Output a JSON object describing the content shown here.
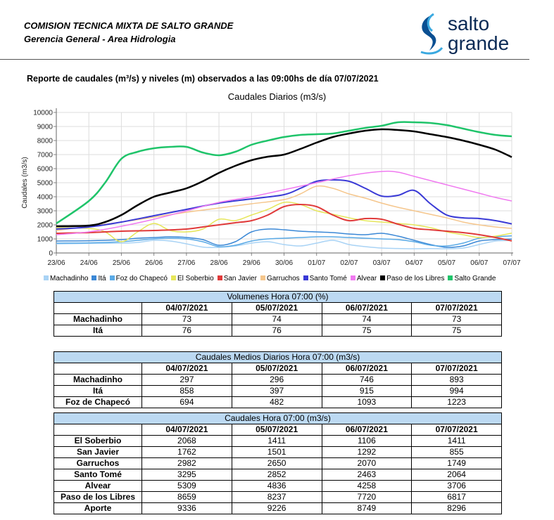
{
  "header": {
    "org": "COMISION TECNICA MIXTA DE SALTO GRANDE",
    "dept": "Gerencia General - Area Hidrologia",
    "logo_line1": "salto",
    "logo_line2": "grande",
    "report_title": "Reporte de caudales (m³/s) y niveles (m) observados a las 09:00hs de día 07/07/2021"
  },
  "chart_data": {
    "type": "line",
    "title": "Caudales Diarios (m3/s)",
    "ylabel": "Caudales (m3/s)",
    "xlabel": "",
    "ylim": [
      0,
      10000
    ],
    "yticks": [
      0,
      1000,
      2000,
      3000,
      4000,
      5000,
      6000,
      7000,
      8000,
      9000,
      10000
    ],
    "xlim": [
      0,
      14
    ],
    "x_tick_labels": [
      "23/06",
      "24/06",
      "25/06",
      "26/06",
      "27/06",
      "28/06",
      "29/06",
      "30/06",
      "01/07",
      "02/07",
      "03/07",
      "04/07",
      "05/07",
      "06/07",
      "07/07"
    ],
    "grid": true,
    "legend": "bottom",
    "series": [
      {
        "name": "Machadinho",
        "color": "#a9d3f5",
        "width": 1.5,
        "x": [
          0,
          1,
          2,
          2.5,
          3,
          3.5,
          4,
          4.5,
          5,
          5.5,
          6,
          6.5,
          7,
          7.5,
          8,
          8.5,
          9,
          9.5,
          10,
          10.5,
          11,
          11.5,
          12,
          12.5,
          13,
          13.5,
          14
        ],
        "y": [
          650,
          680,
          700,
          750,
          900,
          850,
          650,
          420,
          400,
          500,
          700,
          800,
          600,
          500,
          700,
          900,
          600,
          450,
          350,
          320,
          300,
          310,
          300,
          350,
          600,
          850,
          890
        ]
      },
      {
        "name": "Itá",
        "color": "#3b88d6",
        "width": 1.5,
        "x": [
          0,
          1,
          2,
          2.5,
          3,
          3.5,
          4,
          4.5,
          5,
          5.5,
          6,
          6.5,
          7,
          7.5,
          8,
          8.5,
          9,
          9.5,
          10,
          10.5,
          11,
          11.5,
          12,
          12.5,
          13,
          13.5,
          14
        ],
        "y": [
          850,
          870,
          950,
          1050,
          1100,
          1150,
          1100,
          950,
          550,
          800,
          1500,
          1700,
          1650,
          1550,
          1500,
          1450,
          1350,
          1300,
          1400,
          1200,
          900,
          600,
          400,
          500,
          850,
          950,
          990
        ]
      },
      {
        "name": "Foz do Chapecó",
        "color": "#5aaae6",
        "width": 1.5,
        "x": [
          0,
          1,
          2,
          2.5,
          3,
          3.5,
          4,
          4.5,
          5,
          5.5,
          6,
          6.5,
          7,
          7.5,
          8,
          8.5,
          9,
          9.5,
          10,
          10.5,
          11,
          11.5,
          12,
          12.5,
          13,
          13.5,
          14
        ],
        "y": [
          700,
          720,
          800,
          900,
          1000,
          1050,
          1000,
          800,
          450,
          550,
          850,
          1000,
          1050,
          1100,
          1150,
          1150,
          1100,
          1050,
          1000,
          950,
          800,
          550,
          500,
          700,
          1050,
          1150,
          1220
        ]
      },
      {
        "name": "El Soberbio",
        "color": "#e6e65a",
        "width": 1.5,
        "x": [
          0,
          1,
          1.5,
          2,
          2.5,
          3,
          3.5,
          4,
          4.5,
          5,
          5.5,
          6,
          6.5,
          7,
          7.5,
          8,
          8.5,
          9,
          9.5,
          10,
          10.5,
          11,
          11.5,
          12,
          12.5,
          13,
          13.5,
          14
        ],
        "y": [
          1800,
          1750,
          1500,
          800,
          1500,
          2100,
          1600,
          1500,
          1700,
          2400,
          2300,
          2700,
          3100,
          3600,
          3450,
          3000,
          2750,
          2500,
          2300,
          2200,
          2100,
          2000,
          1800,
          1500,
          1300,
          1100,
          1200,
          1410
        ]
      },
      {
        "name": "San Javier",
        "color": "#e03a3a",
        "width": 2,
        "x": [
          0,
          1,
          2,
          3,
          4,
          4.5,
          5,
          5.5,
          6,
          6.5,
          7,
          7.5,
          8,
          8.5,
          9,
          9.5,
          10,
          10.5,
          11,
          11.5,
          12,
          12.5,
          13,
          13.5,
          14
        ],
        "y": [
          1400,
          1450,
          1550,
          1600,
          1700,
          1850,
          2000,
          2150,
          2300,
          2700,
          3300,
          3450,
          3300,
          2700,
          2300,
          2450,
          2400,
          2050,
          1750,
          1650,
          1550,
          1450,
          1300,
          1100,
          860
        ]
      },
      {
        "name": "Garruchos",
        "color": "#f5c68c",
        "width": 1.5,
        "x": [
          0,
          1,
          2,
          3,
          4,
          5,
          6,
          7,
          7.5,
          8,
          8.5,
          9,
          9.5,
          10,
          10.5,
          11,
          11.5,
          12,
          12.5,
          13,
          13.5,
          14
        ],
        "y": [
          1600,
          1900,
          2200,
          2550,
          2900,
          3200,
          3500,
          3800,
          4200,
          4750,
          4600,
          4200,
          3900,
          3550,
          3250,
          3000,
          2750,
          2500,
          2200,
          2000,
          1850,
          1750
        ]
      },
      {
        "name": "Santo Tomé",
        "color": "#3a3ad6",
        "width": 2,
        "x": [
          0,
          1,
          2,
          3,
          4,
          5,
          6,
          7,
          7.5,
          8,
          8.5,
          9,
          9.5,
          10,
          10.5,
          11,
          11.5,
          12,
          12.5,
          13,
          13.5,
          14
        ],
        "y": [
          1700,
          1850,
          2200,
          2650,
          3100,
          3550,
          3850,
          4150,
          4600,
          5100,
          5200,
          5100,
          4600,
          4050,
          4100,
          4450,
          3500,
          2700,
          2500,
          2450,
          2300,
          2070
        ]
      },
      {
        "name": "Alvear",
        "color": "#f07af0",
        "width": 1.5,
        "x": [
          0,
          1,
          2,
          3,
          4,
          5,
          6,
          7,
          8,
          9,
          10,
          10.5,
          11,
          11.5,
          12,
          12.5,
          13,
          13.5,
          14
        ],
        "y": [
          1300,
          1500,
          1900,
          2400,
          3000,
          3600,
          4000,
          4500,
          5000,
          5500,
          5800,
          5750,
          5450,
          5150,
          4850,
          4550,
          4250,
          3950,
          3700
        ]
      },
      {
        "name": "Paso de los Libres",
        "color": "#000000",
        "width": 2.5,
        "x": [
          0,
          1,
          1.5,
          2,
          2.5,
          3,
          3.5,
          4,
          4.5,
          5,
          5.5,
          6,
          6.5,
          7,
          7.5,
          8,
          8.5,
          9,
          9.5,
          10,
          10.5,
          11,
          11.5,
          12,
          12.5,
          13,
          13.5,
          14
        ],
        "y": [
          1900,
          1950,
          2200,
          2700,
          3400,
          4000,
          4300,
          4600,
          5100,
          5700,
          6200,
          6600,
          6850,
          7000,
          7400,
          7850,
          8250,
          8500,
          8700,
          8800,
          8750,
          8650,
          8450,
          8250,
          8000,
          7700,
          7350,
          6820
        ]
      },
      {
        "name": "Salto Grande",
        "color": "#1fc46a",
        "width": 2.5,
        "x": [
          0,
          1,
          1.5,
          2,
          2.5,
          3,
          3.5,
          4,
          4.5,
          5,
          5.5,
          6,
          6.5,
          7,
          7.5,
          8,
          8.5,
          9,
          9.5,
          10,
          10.5,
          11,
          11.5,
          12,
          12.5,
          13,
          13.5,
          14
        ],
        "y": [
          2100,
          3700,
          5000,
          6700,
          7200,
          7450,
          7550,
          7550,
          7150,
          6950,
          7200,
          7700,
          8000,
          8250,
          8400,
          8450,
          8500,
          8700,
          8900,
          9050,
          9300,
          9300,
          9250,
          9100,
          8850,
          8600,
          8400,
          8300
        ]
      }
    ]
  },
  "tables": [
    {
      "caption": "Volumenes Hora 07:00 (%)",
      "dates": [
        "04/07/2021",
        "05/07/2021",
        "06/07/2021",
        "07/07/2021"
      ],
      "rows": [
        {
          "label": "Machadinho",
          "values": [
            "73",
            "74",
            "74",
            "73"
          ]
        },
        {
          "label": "Itá",
          "values": [
            "76",
            "76",
            "75",
            "75"
          ]
        }
      ]
    },
    {
      "caption": "Caudales Medios Diarios Hora 07:00 (m3/s)",
      "dates": [
        "04/07/2021",
        "05/07/2021",
        "06/07/2021",
        "07/07/2021"
      ],
      "rows": [
        {
          "label": "Machadinho",
          "values": [
            "297",
            "296",
            "746",
            "893"
          ]
        },
        {
          "label": "Itá",
          "values": [
            "858",
            "397",
            "915",
            "994"
          ]
        },
        {
          "label": "Foz de Chapecó",
          "values": [
            "694",
            "482",
            "1093",
            "1223"
          ]
        }
      ]
    },
    {
      "caption": "Caudales Hora 07:00 (m3/s)",
      "dates": [
        "04/07/2021",
        "05/07/2021",
        "06/07/2021",
        "07/07/2021"
      ],
      "rows": [
        {
          "label": "El Soberbio",
          "values": [
            "2068",
            "1411",
            "1106",
            "1411"
          ]
        },
        {
          "label": "San Javier",
          "values": [
            "1762",
            "1501",
            "1292",
            "855"
          ]
        },
        {
          "label": "Garruchos",
          "values": [
            "2982",
            "2650",
            "2070",
            "1749"
          ]
        },
        {
          "label": "Santo Tomé",
          "values": [
            "3295",
            "2852",
            "2463",
            "2064"
          ]
        },
        {
          "label": "Alvear",
          "values": [
            "5309",
            "4836",
            "4258",
            "3706"
          ]
        },
        {
          "label": "Paso de los Libres",
          "values": [
            "8659",
            "8237",
            "7720",
            "6817"
          ]
        },
        {
          "label": "Aporte",
          "values": [
            "9336",
            "9226",
            "8749",
            "8296"
          ]
        }
      ]
    }
  ]
}
